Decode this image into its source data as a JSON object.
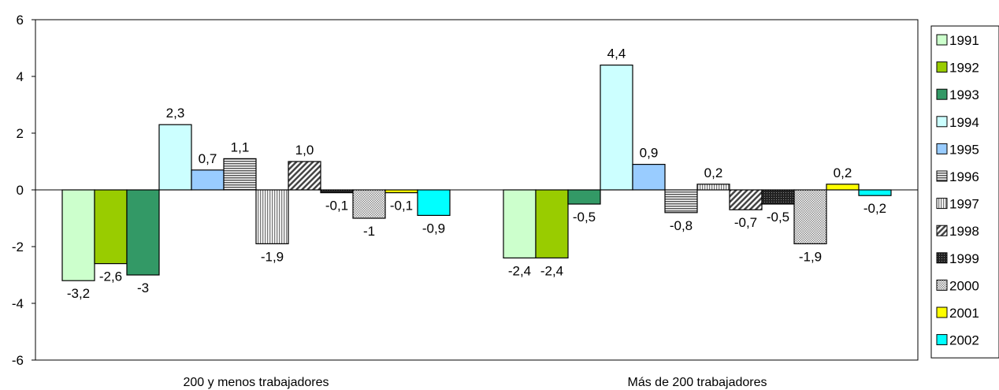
{
  "chart_data": {
    "type": "bar",
    "title": "",
    "xlabel": "",
    "ylabel": "",
    "ylim": [
      -6,
      6
    ],
    "yticks": [
      6,
      4,
      2,
      0,
      -2,
      -4,
      -6
    ],
    "legend_position": "right",
    "grid": false,
    "categories": [
      "200 y menos trabajadores",
      "Más de 200 trabajadores"
    ],
    "series": [
      {
        "name": "1991",
        "values": [
          -3.2,
          -2.4
        ],
        "labels": [
          "-3,2",
          "-2,4"
        ],
        "color": "#ccffcc",
        "pattern": "solid"
      },
      {
        "name": "1992",
        "values": [
          -2.6,
          -2.4
        ],
        "labels": [
          "-2,6",
          "-2,4"
        ],
        "color": "#99cc00",
        "pattern": "solid"
      },
      {
        "name": "1993",
        "values": [
          -3.0,
          -0.5
        ],
        "labels": [
          "-3",
          "-0,5"
        ],
        "color": "#339966",
        "pattern": "solid"
      },
      {
        "name": "1994",
        "values": [
          2.3,
          4.4
        ],
        "labels": [
          "2,3",
          "4,4"
        ],
        "color": "#ccffff",
        "pattern": "solid"
      },
      {
        "name": "1995",
        "values": [
          0.7,
          0.9
        ],
        "labels": [
          "0,7",
          "0,9"
        ],
        "color": "#99ccff",
        "pattern": "solid"
      },
      {
        "name": "1996",
        "values": [
          1.1,
          -0.8
        ],
        "labels": [
          "1,1",
          "-0,8"
        ],
        "color": "#808080",
        "pattern": "hstripe"
      },
      {
        "name": "1997",
        "values": [
          -1.9,
          0.2
        ],
        "labels": [
          "-1,9",
          "0,2"
        ],
        "color": "#a0a0a0",
        "pattern": "vstripe"
      },
      {
        "name": "1998",
        "values": [
          1.0,
          -0.7
        ],
        "labels": [
          "1,0",
          "-0,7"
        ],
        "color": "#707070",
        "pattern": "diag"
      },
      {
        "name": "1999",
        "values": [
          -0.1,
          -0.5
        ],
        "labels": [
          "-0,1",
          "-0,5"
        ],
        "color": "#303030",
        "pattern": "dark"
      },
      {
        "name": "2000",
        "values": [
          -1.0,
          -1.9
        ],
        "labels": [
          "-1",
          "-1,9"
        ],
        "color": "#b0b0b0",
        "pattern": "check"
      },
      {
        "name": "2001",
        "values": [
          -0.1,
          0.2
        ],
        "labels": [
          "-0,1",
          "0,2"
        ],
        "color": "#ffff00",
        "pattern": "solid"
      },
      {
        "name": "2002",
        "values": [
          -0.9,
          -0.2
        ],
        "labels": [
          "-0,9",
          "-0,2"
        ],
        "color": "#00ffff",
        "pattern": "solid"
      }
    ]
  }
}
